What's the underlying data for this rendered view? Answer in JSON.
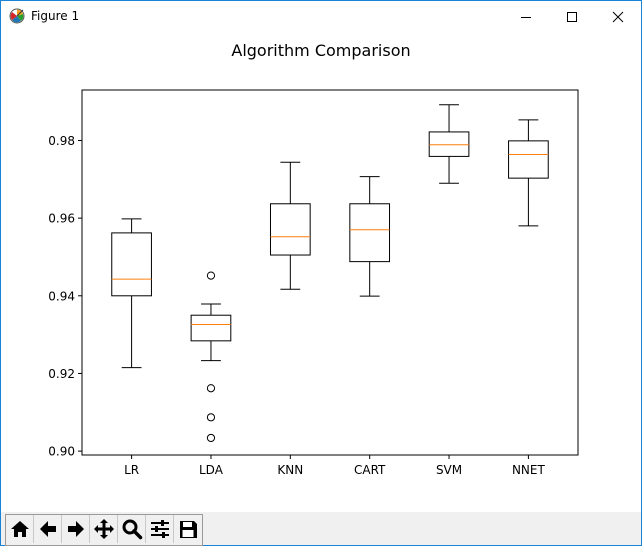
{
  "window": {
    "title": "Figure 1",
    "controls": [
      "minimize",
      "maximize",
      "close"
    ]
  },
  "toolbar": {
    "buttons": [
      {
        "name": "home",
        "icon": "home-icon"
      },
      {
        "name": "back",
        "icon": "arrow-left-icon"
      },
      {
        "name": "forward",
        "icon": "arrow-right-icon"
      },
      {
        "name": "pan",
        "icon": "move-icon"
      },
      {
        "name": "zoom",
        "icon": "zoom-icon"
      },
      {
        "name": "configure-subplots",
        "icon": "sliders-icon"
      },
      {
        "name": "save",
        "icon": "save-icon"
      }
    ]
  },
  "colors": {
    "median": "#ff7f0e",
    "box": "#000000",
    "background": "#ffffff",
    "window_border": "#1883d7",
    "toolbar_bg": "#f0f0f0"
  },
  "chart_data": {
    "type": "boxplot",
    "title": "Algorithm Comparison",
    "xlabel": "",
    "ylabel": "",
    "ylim": [
      0.899,
      0.993
    ],
    "yticks": [
      0.9,
      0.92,
      0.94,
      0.96,
      0.98
    ],
    "ytick_labels": [
      "0.90",
      "0.92",
      "0.94",
      "0.96",
      "0.98"
    ],
    "grid": false,
    "categories": [
      "LR",
      "LDA",
      "KNN",
      "CART",
      "SVM",
      "NNET"
    ],
    "boxes": [
      {
        "label": "LR",
        "whisker_low": 0.9215,
        "q1": 0.94,
        "median": 0.9443,
        "q3": 0.9562,
        "whisker_high": 0.9598,
        "fliers": []
      },
      {
        "label": "LDA",
        "whisker_low": 0.9233,
        "q1": 0.9284,
        "median": 0.9326,
        "q3": 0.935,
        "whisker_high": 0.9379,
        "fliers": [
          0.9452,
          0.9162,
          0.9087,
          0.9034
        ]
      },
      {
        "label": "KNN",
        "whisker_low": 0.9417,
        "q1": 0.9505,
        "median": 0.9552,
        "q3": 0.9637,
        "whisker_high": 0.9744,
        "fliers": []
      },
      {
        "label": "CART",
        "whisker_low": 0.9399,
        "q1": 0.9488,
        "median": 0.957,
        "q3": 0.9637,
        "whisker_high": 0.9707,
        "fliers": []
      },
      {
        "label": "SVM",
        "whisker_low": 0.969,
        "q1": 0.9759,
        "median": 0.9789,
        "q3": 0.9822,
        "whisker_high": 0.9892,
        "fliers": []
      },
      {
        "label": "NNET",
        "whisker_low": 0.958,
        "q1": 0.9703,
        "median": 0.9764,
        "q3": 0.9799,
        "whisker_high": 0.9853,
        "fliers": []
      }
    ]
  }
}
